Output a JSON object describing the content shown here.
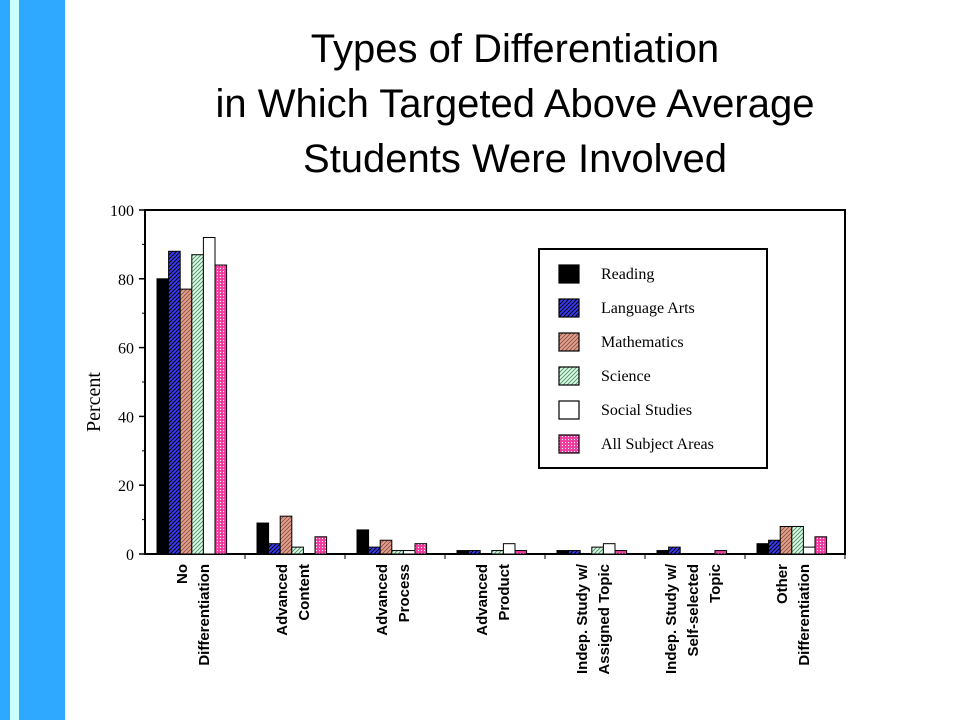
{
  "title_lines": [
    "Types of Differentiation",
    "in Which Targeted Above Average",
    "Students Were Involved"
  ],
  "colors": {
    "sidebar": "#2ea9ff",
    "sidebar_stripe": "#ccffff",
    "reading": "#000000",
    "language_arts": "#2a2acc",
    "mathematics": "#d98a72",
    "science": "#b8f0d0",
    "social_studies": "#ffffff",
    "all_subject_areas": "#e6228f"
  },
  "chart_data": {
    "type": "bar",
    "ylabel": "Percent",
    "ylim": [
      0,
      100
    ],
    "yticks": [
      0,
      20,
      40,
      60,
      80,
      100
    ],
    "grid": false,
    "legend_position": "top-right",
    "categories": [
      [
        "No",
        "Differentiation"
      ],
      [
        "Advanced",
        "Content"
      ],
      [
        "Advanced",
        "Process"
      ],
      [
        "Advanced",
        "Product"
      ],
      [
        "Indep. Study w/",
        "Assigned Topic"
      ],
      [
        "Indep. Study w/",
        "Self-selected",
        "Topic"
      ],
      [
        "Other",
        "Differentiation"
      ]
    ],
    "series": [
      {
        "name": "Reading",
        "color": "#000000",
        "pattern": "solid",
        "values": [
          80,
          9,
          7,
          1,
          1,
          1,
          3
        ]
      },
      {
        "name": "Language Arts",
        "color": "#2a2acc",
        "pattern": "hatch-blue",
        "values": [
          88,
          3,
          2,
          1,
          1,
          2,
          4
        ]
      },
      {
        "name": "Mathematics",
        "color": "#d98a72",
        "pattern": "hatch-salmon",
        "values": [
          77,
          11,
          4,
          0,
          0,
          0,
          8
        ]
      },
      {
        "name": "Science",
        "color": "#b8f0d0",
        "pattern": "hatch-green",
        "values": [
          87,
          2,
          1,
          1,
          2,
          0,
          8
        ]
      },
      {
        "name": "Social Studies",
        "color": "#ffffff",
        "pattern": "white",
        "values": [
          92,
          0,
          1,
          3,
          3,
          0,
          2
        ]
      },
      {
        "name": "All Subject Areas",
        "color": "#e6228f",
        "pattern": "dots-pink",
        "values": [
          84,
          5,
          3,
          1,
          1,
          1,
          5
        ]
      }
    ]
  }
}
